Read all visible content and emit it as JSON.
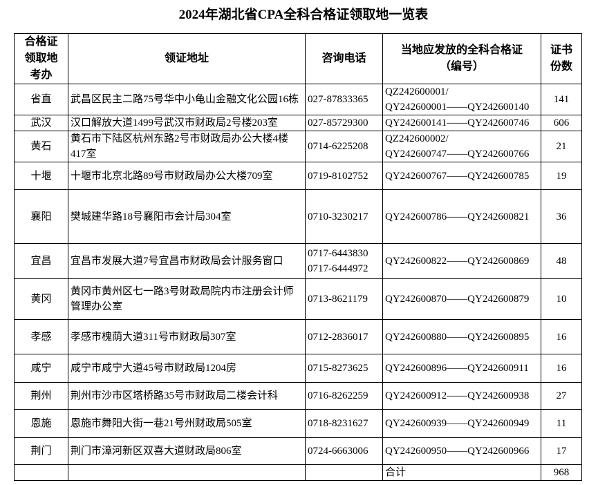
{
  "title": "2024年湖北省CPA全科合格证领取地一览表",
  "headers": {
    "office": "合格证领取地考办",
    "address": "领证地址",
    "phone": "咨询电话",
    "numbers_line1": "当地应发放的全科合格证",
    "numbers_line2": "（编号）",
    "count": "证书份数"
  },
  "rows": [
    {
      "office": "省直",
      "address": "武昌区民主二路75号华中小龟山金融文化公园16栋",
      "phone1": "027-87833365",
      "phone2": "",
      "num1": "QZ242600001/",
      "num2": "QY242600001——QY242600140",
      "count": "141"
    },
    {
      "office": "武汉",
      "address": "汉口解放大道1499号武汉市财政局2号楼203室",
      "phone1": "027-85729300",
      "phone2": "",
      "num1": "QY242600141——QY242600746",
      "num2": "",
      "count": "606"
    },
    {
      "office": "黄石",
      "address": "黄石市下陆区杭州东路2号市财政局办公大楼4楼417室",
      "phone1": "0714-6225208",
      "phone2": "",
      "num1": "QZ242600002/",
      "num2": "QY242600747——QY242600766",
      "count": "21"
    },
    {
      "office": "十堰",
      "address": "十堰市北京北路89号市财政局办公大楼709室",
      "phone1": "0719-8102752",
      "phone2": "",
      "num1": "QY242600767——QY242600785",
      "num2": "",
      "count": "19"
    },
    {
      "office": "襄阳",
      "address": "樊城建华路18号襄阳市会计局304室",
      "phone1": "0710-3230217",
      "phone2": "",
      "num1": "QY242600786——QY242600821",
      "num2": "",
      "count": "36"
    },
    {
      "office": "宜昌",
      "address": "宜昌市发展大道7号宜昌市财政局会计服务窗口",
      "phone1": "0717-6443830",
      "phone2": "0717-6444972",
      "num1": "QY242600822——QY242600869",
      "num2": "",
      "count": "48"
    },
    {
      "office": "黄冈",
      "address": "黄冈市黄州区七一路3号财政局院内市注册会计师管理办公室",
      "phone1": "0713-8621179",
      "phone2": "",
      "num1": "QY242600870——QY242600879",
      "num2": "",
      "count": "10"
    },
    {
      "office": "孝感",
      "address": "孝感市槐荫大道311号市财政局307室",
      "phone1": "0712-2836017",
      "phone2": "",
      "num1": "QY242600880——QY242600895",
      "num2": "",
      "count": "16"
    },
    {
      "office": "咸宁",
      "address": "咸宁市咸宁大道45号市财政局1204房",
      "phone1": "0715-8273625",
      "phone2": "",
      "num1": "QY242600896——QY242600911",
      "num2": "",
      "count": "16"
    },
    {
      "office": "荆州",
      "address": "荆州市沙市区塔桥路35号市财政局二楼会计科",
      "phone1": "0716-8262259",
      "phone2": "",
      "num1": "QY242600912——QY242600938",
      "num2": "",
      "count": "27"
    },
    {
      "office": "恩施",
      "address": "恩施市舞阳大街一巷21号州财政局505室",
      "phone1": "0718-8231627",
      "phone2": "",
      "num1": "QY242600939——QY242600949",
      "num2": "",
      "count": "11"
    },
    {
      "office": "荆门",
      "address": "荆门市漳河新区双喜大道财政局806室",
      "phone1": "0724-6663006",
      "phone2": "",
      "num1": "QY242600950——QY242600966",
      "num2": "",
      "count": "17"
    }
  ],
  "total": {
    "label": "合计",
    "count": "968"
  }
}
